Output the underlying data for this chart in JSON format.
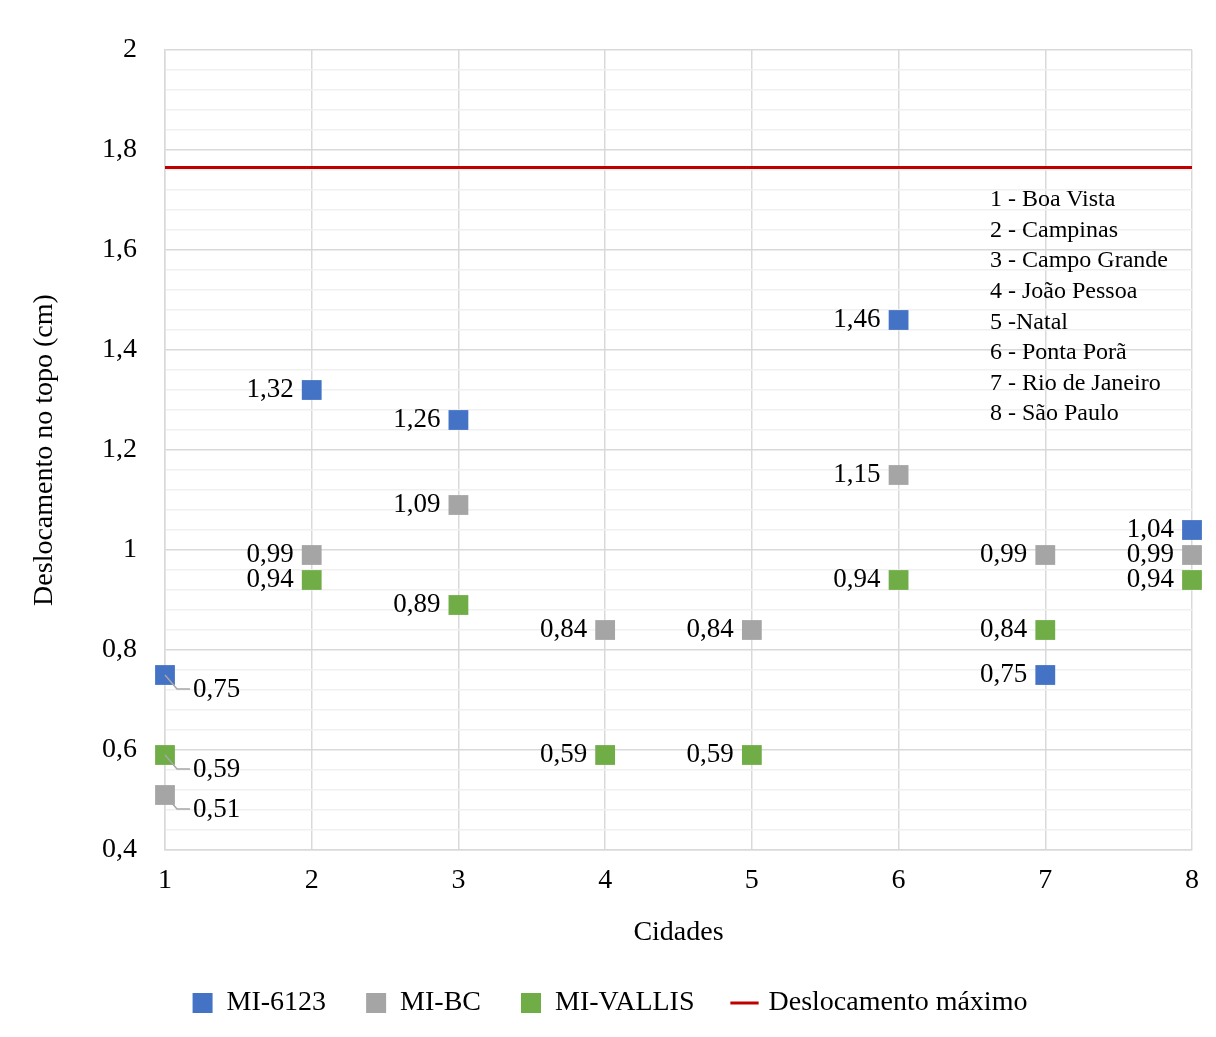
{
  "chart_data": {
    "type": "scatter",
    "xlabel": "Cidades",
    "ylabel": "Deslocamento no topo (cm)",
    "x": [
      1,
      2,
      3,
      4,
      5,
      6,
      7,
      8
    ],
    "xlim": [
      1,
      8
    ],
    "xticks": [
      1,
      2,
      3,
      4,
      5,
      6,
      7,
      8
    ],
    "ylim": [
      0.4,
      2
    ],
    "yticks": [
      {
        "value": 0.4,
        "label": "0,4"
      },
      {
        "value": 0.44,
        "label": null
      },
      {
        "value": 0.48,
        "label": null
      },
      {
        "value": 0.52,
        "label": null
      },
      {
        "value": 0.56,
        "label": null
      },
      {
        "value": 0.6,
        "label": "0,6"
      },
      {
        "value": 0.64,
        "label": null
      },
      {
        "value": 0.68,
        "label": null
      },
      {
        "value": 0.72,
        "label": null
      },
      {
        "value": 0.76,
        "label": null
      },
      {
        "value": 0.8,
        "label": "0,8"
      },
      {
        "value": 0.84,
        "label": null
      },
      {
        "value": 0.88,
        "label": null
      },
      {
        "value": 0.92,
        "label": null
      },
      {
        "value": 0.96,
        "label": null
      },
      1,
      {
        "value": 1.04,
        "label": null
      },
      {
        "value": 1.08,
        "label": null
      },
      {
        "value": 1.12,
        "label": null
      },
      {
        "value": 1.16,
        "label": null
      },
      {
        "value": 1.2,
        "label": "1,2"
      },
      {
        "value": 1.24,
        "label": null
      },
      {
        "value": 1.28,
        "label": null
      },
      {
        "value": 1.32,
        "label": null
      },
      {
        "value": 1.36,
        "label": null
      },
      {
        "value": 1.4,
        "label": "1,4"
      },
      {
        "value": 1.44,
        "label": null
      },
      {
        "value": 1.48,
        "label": null
      },
      {
        "value": 1.52,
        "label": null
      },
      {
        "value": 1.56,
        "label": null
      },
      {
        "value": 1.6,
        "label": "1,6"
      },
      {
        "value": 1.64,
        "label": null
      },
      {
        "value": 1.68,
        "label": null
      },
      {
        "value": 1.72,
        "label": null
      },
      {
        "value": 1.76,
        "label": null
      },
      {
        "value": 1.8,
        "label": "1,8"
      },
      {
        "value": 1.84,
        "label": null
      },
      {
        "value": 1.88,
        "label": null
      },
      {
        "value": 1.92,
        "label": null
      },
      {
        "value": 1.96,
        "label": null
      },
      2
    ],
    "marker": "square",
    "grid": true,
    "legend": "bottom",
    "series": [
      {
        "name": "MI-6123",
        "color": "#4472c4",
        "values": [
          0.75,
          1.32,
          1.26,
          null,
          null,
          1.46,
          0.75,
          1.04
        ],
        "value_labels": [
          "0,75",
          "1,32",
          "1,26",
          null,
          null,
          "1,46",
          "0,75",
          "1,04"
        ]
      },
      {
        "name": "MI-BC",
        "color": "#a5a5a5",
        "values": [
          0.51,
          0.99,
          1.09,
          0.84,
          0.84,
          1.15,
          0.99,
          0.99
        ],
        "value_labels": [
          "0,51",
          "0,99",
          "1,09",
          "0,84",
          "0,84",
          "1,15",
          "0,99",
          "0,99"
        ]
      },
      {
        "name": "MI-VALLIS",
        "color": "#70ad47",
        "values": [
          0.59,
          0.94,
          0.89,
          0.59,
          0.59,
          0.94,
          0.84,
          0.94
        ],
        "value_labels": [
          "0,59",
          "0,94",
          "0,89",
          "0,59",
          "0,59",
          "0,94",
          "0,84",
          "0,94"
        ]
      },
      {
        "name": "Deslocamento máximo",
        "type": "line",
        "color": "#c00000",
        "x": [
          1,
          8
        ],
        "values": [
          1.765,
          1.765
        ],
        "marker": "none"
      }
    ],
    "annotations": [
      "1 - Boa Vista",
      "2 - Campinas",
      "3 - Campo Grande",
      "4 - João Pessoa",
      "5 -Natal",
      "6 - Ponta Porã",
      "7 - Rio de Janeiro",
      "8 - São Paulo"
    ]
  }
}
